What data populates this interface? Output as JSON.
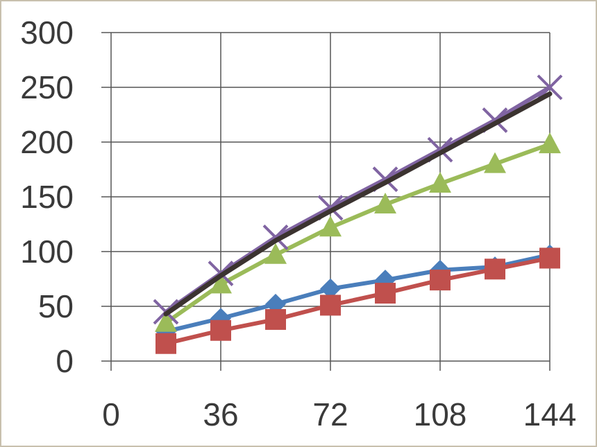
{
  "chart_data": {
    "type": "line",
    "title": "",
    "xlabel": "",
    "ylabel": "",
    "xlim": [
      0,
      144
    ],
    "ylim": [
      0,
      300
    ],
    "x_ticks": [
      "0",
      "36",
      "72",
      "108",
      "144"
    ],
    "y_ticks": [
      "0",
      "50",
      "100",
      "150",
      "200",
      "250",
      "300"
    ],
    "grid": true,
    "legend": "none",
    "series": [
      {
        "color": "#4a7ebb",
        "marker": "diamond",
        "x": [
          18,
          36,
          54,
          72,
          90,
          108,
          126,
          144
        ],
        "values": [
          27,
          39,
          52,
          66,
          74,
          83,
          86,
          97
        ]
      },
      {
        "color": "#c0504d",
        "marker": "square",
        "x": [
          18,
          36,
          54,
          72,
          90,
          108,
          126,
          144
        ],
        "values": [
          16,
          28,
          38,
          51,
          62,
          74,
          84,
          94
        ]
      },
      {
        "color": "#9bbb59",
        "marker": "triangle",
        "x": [
          18,
          36,
          54,
          72,
          90,
          108,
          126,
          144
        ],
        "values": [
          35,
          70,
          97,
          122,
          143,
          162,
          180,
          198
        ]
      },
      {
        "color": "#8064a2",
        "marker": "x",
        "x": [
          18,
          36,
          54,
          72,
          90,
          108,
          126,
          144
        ],
        "values": [
          45,
          80,
          113,
          140,
          166,
          193,
          220,
          250
        ]
      },
      {
        "color": "#3b3330",
        "marker": "none",
        "x": [
          18,
          36,
          54,
          72,
          90,
          108,
          126,
          144
        ],
        "values": [
          43,
          78,
          110,
          137,
          163,
          190,
          217,
          244
        ]
      }
    ]
  }
}
